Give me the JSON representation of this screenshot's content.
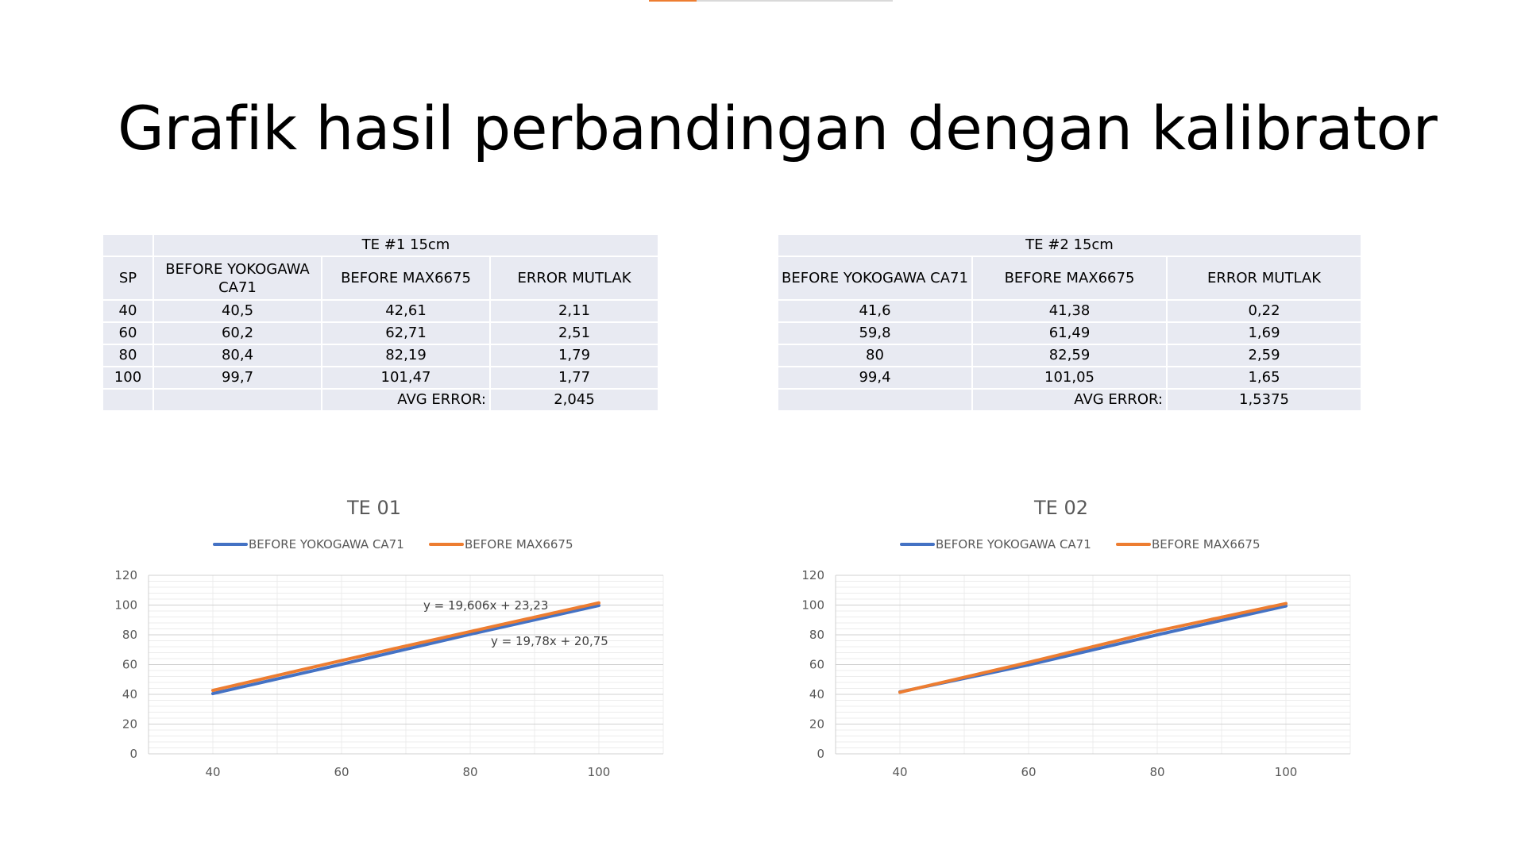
{
  "title": "Grafik hasil perbandingan dengan kalibrator",
  "colors": {
    "blue": "#4472c4",
    "orange": "#ed7d31",
    "cell": "#e8eaf2"
  },
  "table1": {
    "group_header": "TE #1 15cm",
    "col_sp": "SP",
    "col_yoko": "BEFORE YOKOGAWA CA71",
    "col_max": "BEFORE MAX6675",
    "col_err": "ERROR MUTLAK",
    "rows": [
      {
        "sp": "40",
        "yoko": "40,5",
        "max": "42,61",
        "err": "2,11"
      },
      {
        "sp": "60",
        "yoko": "60,2",
        "max": "62,71",
        "err": "2,51"
      },
      {
        "sp": "80",
        "yoko": "80,4",
        "max": "82,19",
        "err": "1,79"
      },
      {
        "sp": "100",
        "yoko": "99,7",
        "max": "101,47",
        "err": "1,77"
      }
    ],
    "avg_label": "AVG ERROR:",
    "avg_value": "2,045"
  },
  "table2": {
    "group_header": "TE #2 15cm",
    "col_yoko": "BEFORE YOKOGAWA CA71",
    "col_max": "BEFORE MAX6675",
    "col_err": "ERROR MUTLAK",
    "rows": [
      {
        "yoko": "41,6",
        "max": "41,38",
        "err": "0,22"
      },
      {
        "yoko": "59,8",
        "max": "61,49",
        "err": "1,69"
      },
      {
        "yoko": "80",
        "max": "82,59",
        "err": "2,59"
      },
      {
        "yoko": "99,4",
        "max": "101,05",
        "err": "1,65"
      }
    ],
    "avg_label": "AVG ERROR:",
    "avg_value": "1,5375"
  },
  "chart_data": [
    {
      "type": "line",
      "title": "TE 01",
      "categories": [
        "40",
        "60",
        "80",
        "100"
      ],
      "series": [
        {
          "name": "BEFORE YOKOGAWA CA71",
          "values": [
            40.5,
            60.2,
            80.4,
            99.7
          ]
        },
        {
          "name": "BEFORE MAX6675",
          "values": [
            42.61,
            62.71,
            82.19,
            101.47
          ]
        }
      ],
      "ylim": [
        0,
        120
      ],
      "yticks": [
        "0",
        "20",
        "40",
        "60",
        "80",
        "100",
        "120"
      ],
      "legend": "top",
      "grid": true,
      "annotations": [
        "y = 19,606x + 23,23",
        "y = 19,78x + 20,75"
      ]
    },
    {
      "type": "line",
      "title": "TE 02",
      "categories": [
        "40",
        "60",
        "80",
        "100"
      ],
      "series": [
        {
          "name": "BEFORE YOKOGAWA CA71",
          "values": [
            41.6,
            59.8,
            80,
            99.4
          ]
        },
        {
          "name": "BEFORE MAX6675",
          "values": [
            41.38,
            61.49,
            82.59,
            101.05
          ]
        }
      ],
      "ylim": [
        0,
        120
      ],
      "yticks": [
        "0",
        "20",
        "40",
        "60",
        "80",
        "100",
        "120"
      ],
      "legend": "top",
      "grid": true,
      "annotations": []
    }
  ]
}
